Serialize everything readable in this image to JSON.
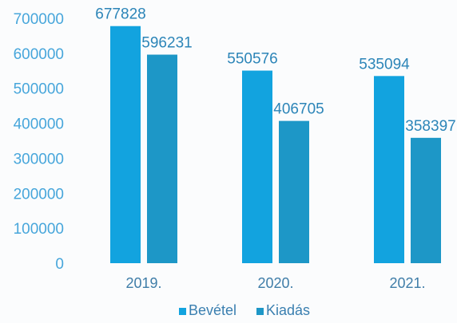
{
  "chart_data": {
    "type": "bar",
    "categories": [
      "2019.",
      "2020.",
      "2021."
    ],
    "series": [
      {
        "name": "Bevétel",
        "values": [
          677828,
          550576,
          535094
        ],
        "color": "#12a3df"
      },
      {
        "name": "Kiadás",
        "values": [
          596231,
          406705,
          358397
        ],
        "color": "#1d97c7"
      }
    ],
    "ylim": [
      0,
      700000
    ],
    "yticks": [
      "0",
      "100000",
      "200000",
      "300000",
      "400000",
      "500000",
      "600000",
      "700000"
    ],
    "data_labels": [
      [
        "677828",
        "550576",
        "535094"
      ],
      [
        "596231",
        "406705",
        "358397"
      ]
    ],
    "grid": false,
    "legend": "bottom",
    "title": "",
    "xlabel": "",
    "ylabel": ""
  }
}
